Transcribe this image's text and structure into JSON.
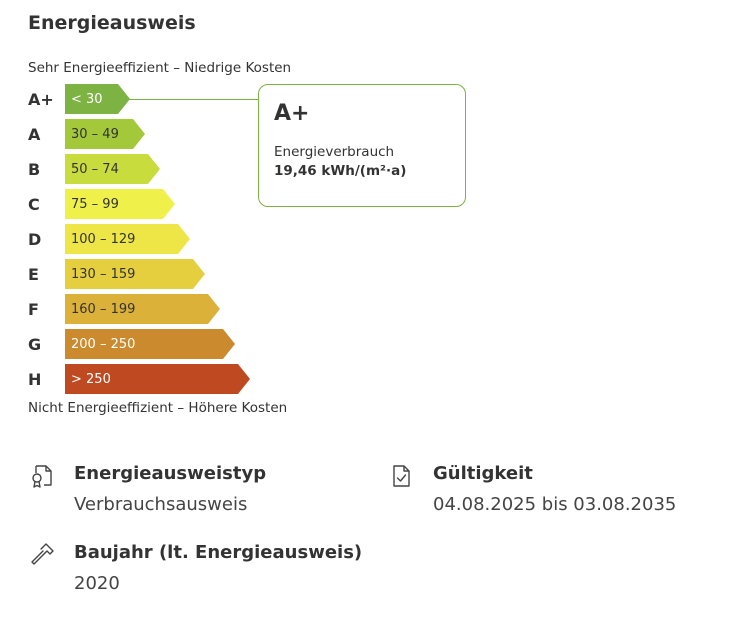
{
  "title": "Energieausweis",
  "scale": {
    "top_label": "Sehr Energieeffizient – Niedrige Kosten",
    "bottom_label": "Nicht Energieeffizient – Höhere Kosten"
  },
  "classes": [
    {
      "letter": "A+",
      "range": "< 30",
      "color": "#7cb342"
    },
    {
      "letter": "A",
      "range": "30 – 49",
      "color": "#a3c93a"
    },
    {
      "letter": "B",
      "range": "50 – 74",
      "color": "#c8dc3e"
    },
    {
      "letter": "C",
      "range": "75 – 99",
      "color": "#eff14a"
    },
    {
      "letter": "D",
      "range": "100 – 129",
      "color": "#ede646"
    },
    {
      "letter": "E",
      "range": "130 – 159",
      "color": "#e5cf3f"
    },
    {
      "letter": "F",
      "range": "160 – 199",
      "color": "#dcb13a"
    },
    {
      "letter": "G",
      "range": "200 – 250",
      "color": "#cc8a2e"
    },
    {
      "letter": "H",
      "range": "> 250",
      "color": "#bf4a22"
    }
  ],
  "result": {
    "class": "A+",
    "label": "Energieverbrauch",
    "value": "19,46 kWh/(m²·a)",
    "accent_color": "#7cb342"
  },
  "details": {
    "type": {
      "icon": "certificate-icon",
      "label": "Energieausweistyp",
      "value": "Verbrauchsausweis"
    },
    "validity": {
      "icon": "document-check-icon",
      "label": "Gültigkeit",
      "value": "04.08.2025 bis 03.08.2035"
    },
    "year": {
      "icon": "hammer-icon",
      "label": "Baujahr (lt. Energieausweis)",
      "value": "2020"
    }
  }
}
